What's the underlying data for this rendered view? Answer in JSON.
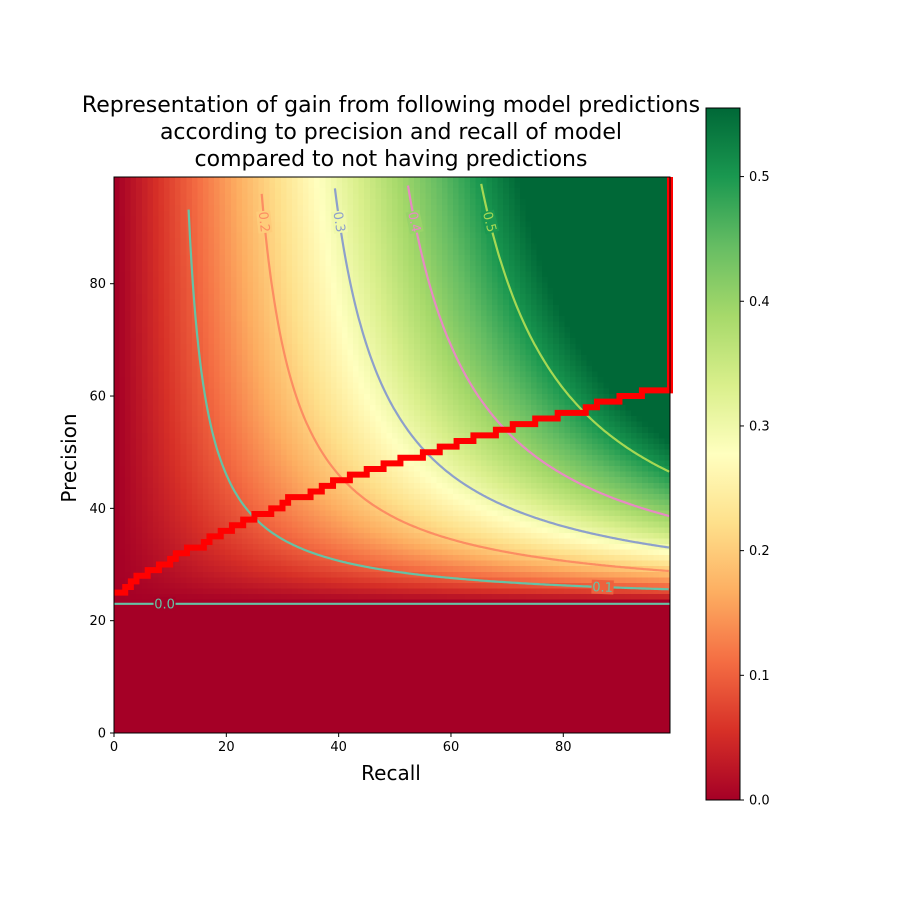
{
  "chart_data": {
    "type": "heatmap",
    "title": [
      "Representation of gain from following model predictions",
      "according to precision and recall of model",
      "compared to not having predictions"
    ],
    "xlabel": "Recall",
    "ylabel": "Precision",
    "xlim": [
      0,
      99
    ],
    "ylim": [
      0,
      99
    ],
    "x_ticks": [
      0,
      20,
      40,
      60,
      80
    ],
    "y_ticks": [
      0,
      20,
      40,
      60,
      80
    ],
    "grid": false,
    "colormap": "RdYlGn",
    "colorbar": {
      "range": [
        0,
        0.555
      ],
      "ticks": [
        "0.0",
        "0.1",
        "0.2",
        "0.3",
        "0.4",
        "0.5"
      ],
      "tick_values": [
        0.0,
        0.1,
        0.2,
        0.3,
        0.4,
        0.5
      ]
    },
    "baseline_precision": 23,
    "contours": [
      {
        "level": 0.0,
        "label": "0.0",
        "color": "#66c2a5"
      },
      {
        "level": 0.1,
        "label": "0.1",
        "color": "#66c2a5"
      },
      {
        "level": 0.2,
        "label": "0.2",
        "color": "#fc8d62"
      },
      {
        "level": 0.3,
        "label": "0.3",
        "color": "#8da0cb"
      },
      {
        "level": 0.4,
        "label": "0.4",
        "color": "#e78ac3"
      },
      {
        "level": 0.5,
        "label": "0.5",
        "color": "#a6d854"
      }
    ],
    "optimal_boundary": {
      "color": "#ff0000",
      "points": [
        [
          0,
          25
        ],
        [
          2,
          26
        ],
        [
          3,
          27
        ],
        [
          4,
          28
        ],
        [
          6,
          29
        ],
        [
          8,
          30
        ],
        [
          10,
          31
        ],
        [
          11,
          32
        ],
        [
          13,
          33
        ],
        [
          16,
          34
        ],
        [
          17,
          35
        ],
        [
          19,
          36
        ],
        [
          21,
          37
        ],
        [
          23,
          38
        ],
        [
          25,
          39
        ],
        [
          28,
          40
        ],
        [
          30,
          41
        ],
        [
          31,
          42
        ],
        [
          35,
          43
        ],
        [
          37,
          44
        ],
        [
          39,
          45
        ],
        [
          42,
          46
        ],
        [
          45,
          47
        ],
        [
          48,
          48
        ],
        [
          51,
          49
        ],
        [
          55,
          50
        ],
        [
          58,
          51
        ],
        [
          61,
          52
        ],
        [
          64,
          53
        ],
        [
          68,
          54
        ],
        [
          71,
          55
        ],
        [
          75,
          56
        ],
        [
          79,
          57
        ],
        [
          84,
          58
        ],
        [
          86,
          59
        ],
        [
          90,
          60
        ],
        [
          94,
          61
        ],
        [
          99,
          61
        ],
        [
          99,
          99
        ]
      ]
    }
  }
}
